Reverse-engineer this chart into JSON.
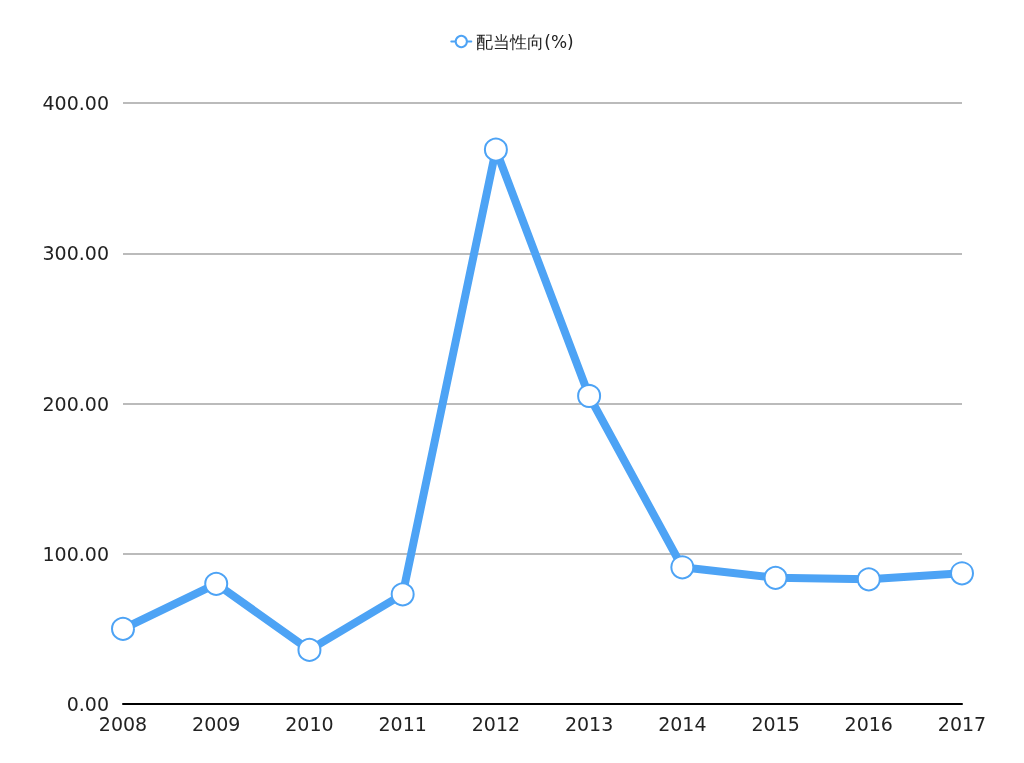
{
  "chart_data": {
    "type": "line",
    "categories": [
      "2008",
      "2009",
      "2010",
      "2011",
      "2012",
      "2013",
      "2014",
      "2015",
      "2016",
      "2017"
    ],
    "series": [
      {
        "name": "配当性向(%)",
        "color": "#4da3f5",
        "values": [
          50,
          80,
          36,
          73,
          369,
          205,
          91,
          84,
          83,
          87
        ]
      }
    ],
    "ylim": [
      0,
      400
    ],
    "yticks": [
      {
        "value": 0,
        "label": "0.00"
      },
      {
        "value": 100,
        "label": "100.00"
      },
      {
        "value": 200,
        "label": "200.00"
      },
      {
        "value": 300,
        "label": "300.00"
      },
      {
        "value": 400,
        "label": "400.00"
      }
    ],
    "grid": "y",
    "legend": "top",
    "marker": "circle",
    "line_style": "solid"
  }
}
